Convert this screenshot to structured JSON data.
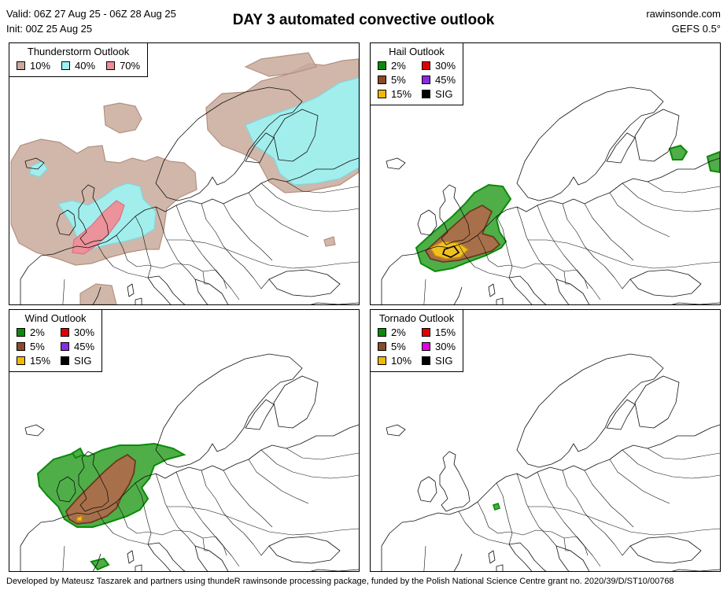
{
  "header": {
    "valid": "Valid: 06Z 27 Aug 25 - 06Z 28 Aug 25",
    "init": "Init: 00Z 25 Aug 25",
    "title": "DAY 3 automated convective outlook",
    "site": "rawinsonde.com",
    "model": "GEFS 0.5°"
  },
  "panels": {
    "thunderstorm": {
      "title": "Thunderstorm Outlook",
      "legend": [
        {
          "label": "10%",
          "color": "#c8aa9b"
        },
        {
          "label": "40%",
          "color": "#9ff0f0"
        },
        {
          "label": "70%",
          "color": "#f08c96"
        }
      ]
    },
    "hail": {
      "title": "Hail Outlook",
      "legend": [
        {
          "label": "2%",
          "color": "#0a8a0a"
        },
        {
          "label": "30%",
          "color": "#e00000"
        },
        {
          "label": "5%",
          "color": "#8b4a2a"
        },
        {
          "label": "45%",
          "color": "#8a2be2"
        },
        {
          "label": "15%",
          "color": "#f0b800"
        },
        {
          "label": "SIG",
          "color": "#000000"
        }
      ]
    },
    "wind": {
      "title": "Wind Outlook",
      "legend": [
        {
          "label": "2%",
          "color": "#0a8a0a"
        },
        {
          "label": "30%",
          "color": "#e00000"
        },
        {
          "label": "5%",
          "color": "#8b4a2a"
        },
        {
          "label": "45%",
          "color": "#8a2be2"
        },
        {
          "label": "15%",
          "color": "#f0b800"
        },
        {
          "label": "SIG",
          "color": "#000000"
        }
      ]
    },
    "tornado": {
      "title": "Tornado Outlook",
      "legend": [
        {
          "label": "2%",
          "color": "#0a8a0a"
        },
        {
          "label": "15%",
          "color": "#e00000"
        },
        {
          "label": "5%",
          "color": "#8b4a2a"
        },
        {
          "label": "30%",
          "color": "#e000e0"
        },
        {
          "label": "10%",
          "color": "#f0b800"
        },
        {
          "label": "SIG",
          "color": "#000000"
        }
      ]
    }
  },
  "footer": "Developed by Mateusz Taszarek and partners using thundeR rawinsonde processing package, funded by the Polish National Science Centre grant no. 2020/39/D/ST10/00768"
}
